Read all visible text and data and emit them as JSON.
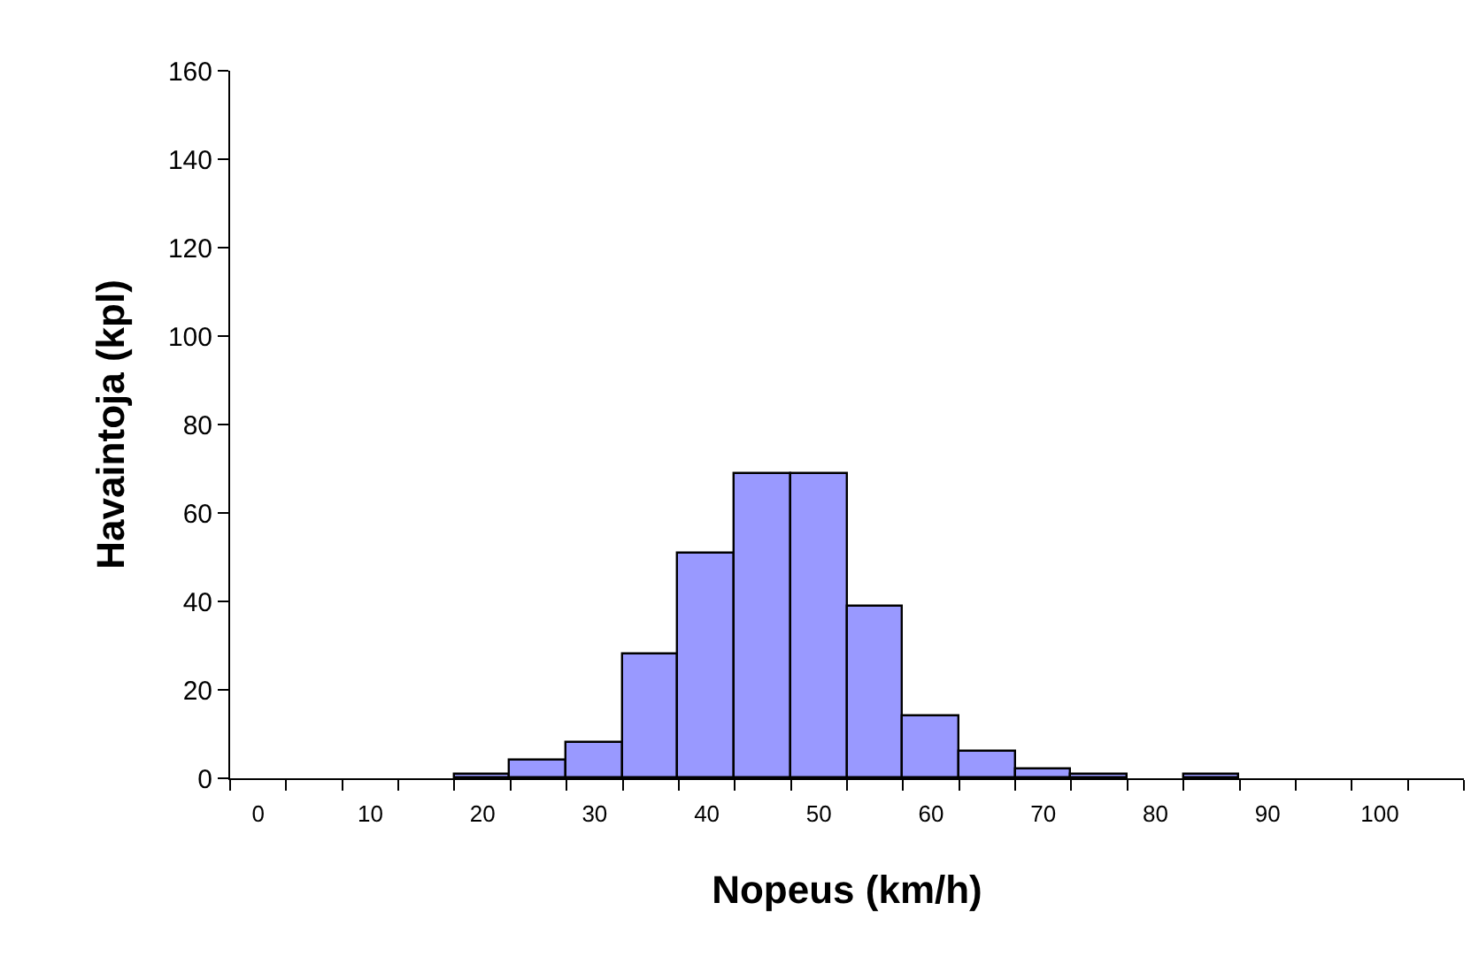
{
  "chart_data": {
    "type": "histogram",
    "xlabel": "Nopeus (km/h)",
    "ylabel": "Havaintoja (kpl)",
    "bins": [
      -2.5,
      2.5,
      7.5,
      12.5,
      17.5,
      22.5,
      27.5,
      32.5,
      37.5,
      42.5,
      47.5,
      52.5,
      57.5,
      62.5,
      67.5,
      72.5,
      77.5,
      82.5,
      87.5,
      92.5,
      97.5,
      102.5,
      107.5
    ],
    "values": [
      0,
      0,
      0,
      0,
      1,
      4,
      8,
      28,
      51,
      69,
      69,
      39,
      14,
      6,
      2,
      1,
      0,
      1,
      0,
      0,
      0,
      0
    ],
    "color": "#9999ff",
    "xlim": [
      -2.5,
      107.5
    ],
    "xticks": [
      0,
      10,
      20,
      30,
      40,
      50,
      60,
      70,
      80,
      90,
      100
    ],
    "ylim": [
      0,
      160
    ],
    "yticks": [
      0,
      20,
      40,
      60,
      80,
      100,
      120,
      140,
      160
    ],
    "grid": false,
    "legend": false
  }
}
